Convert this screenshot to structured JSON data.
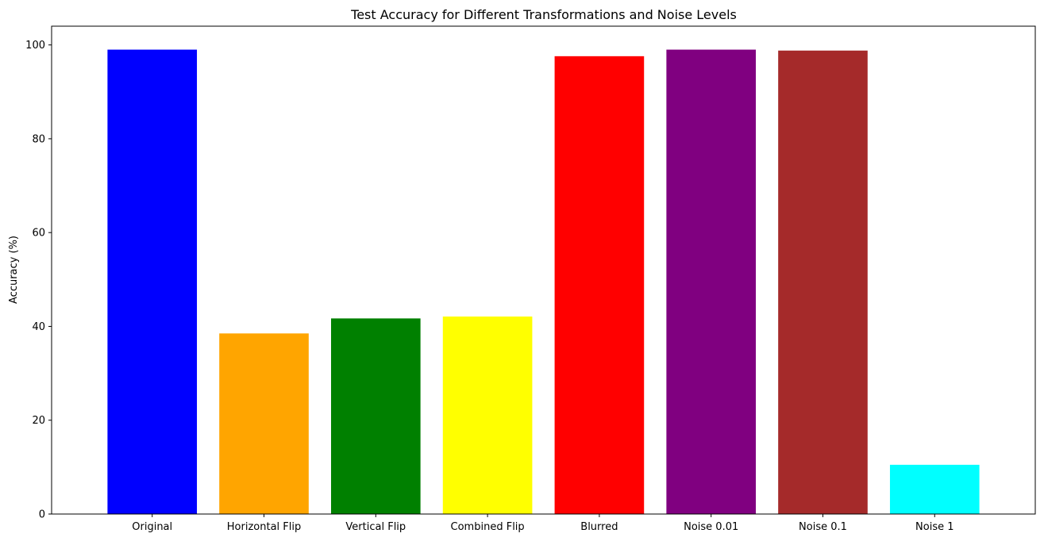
{
  "chart_data": {
    "type": "bar",
    "title": "Test Accuracy for Different Transformations and Noise Levels",
    "xlabel": "",
    "ylabel": "Accuracy (%)",
    "categories": [
      "Original",
      "Horizontal Flip",
      "Vertical Flip",
      "Combined Flip",
      "Blurred",
      "Noise 0.01",
      "Noise 0.1",
      "Noise 1"
    ],
    "values": [
      99.0,
      38.5,
      41.7,
      42.1,
      97.6,
      99.0,
      98.8,
      10.5
    ],
    "colors": [
      "#0000ff",
      "#ffa500",
      "#008000",
      "#ffff00",
      "#ff0000",
      "#800080",
      "#a52a2a",
      "#00ffff"
    ],
    "ylim": [
      0,
      104
    ],
    "yticks": [
      0,
      20,
      40,
      60,
      80,
      100
    ],
    "grid": false,
    "legend": "none"
  }
}
